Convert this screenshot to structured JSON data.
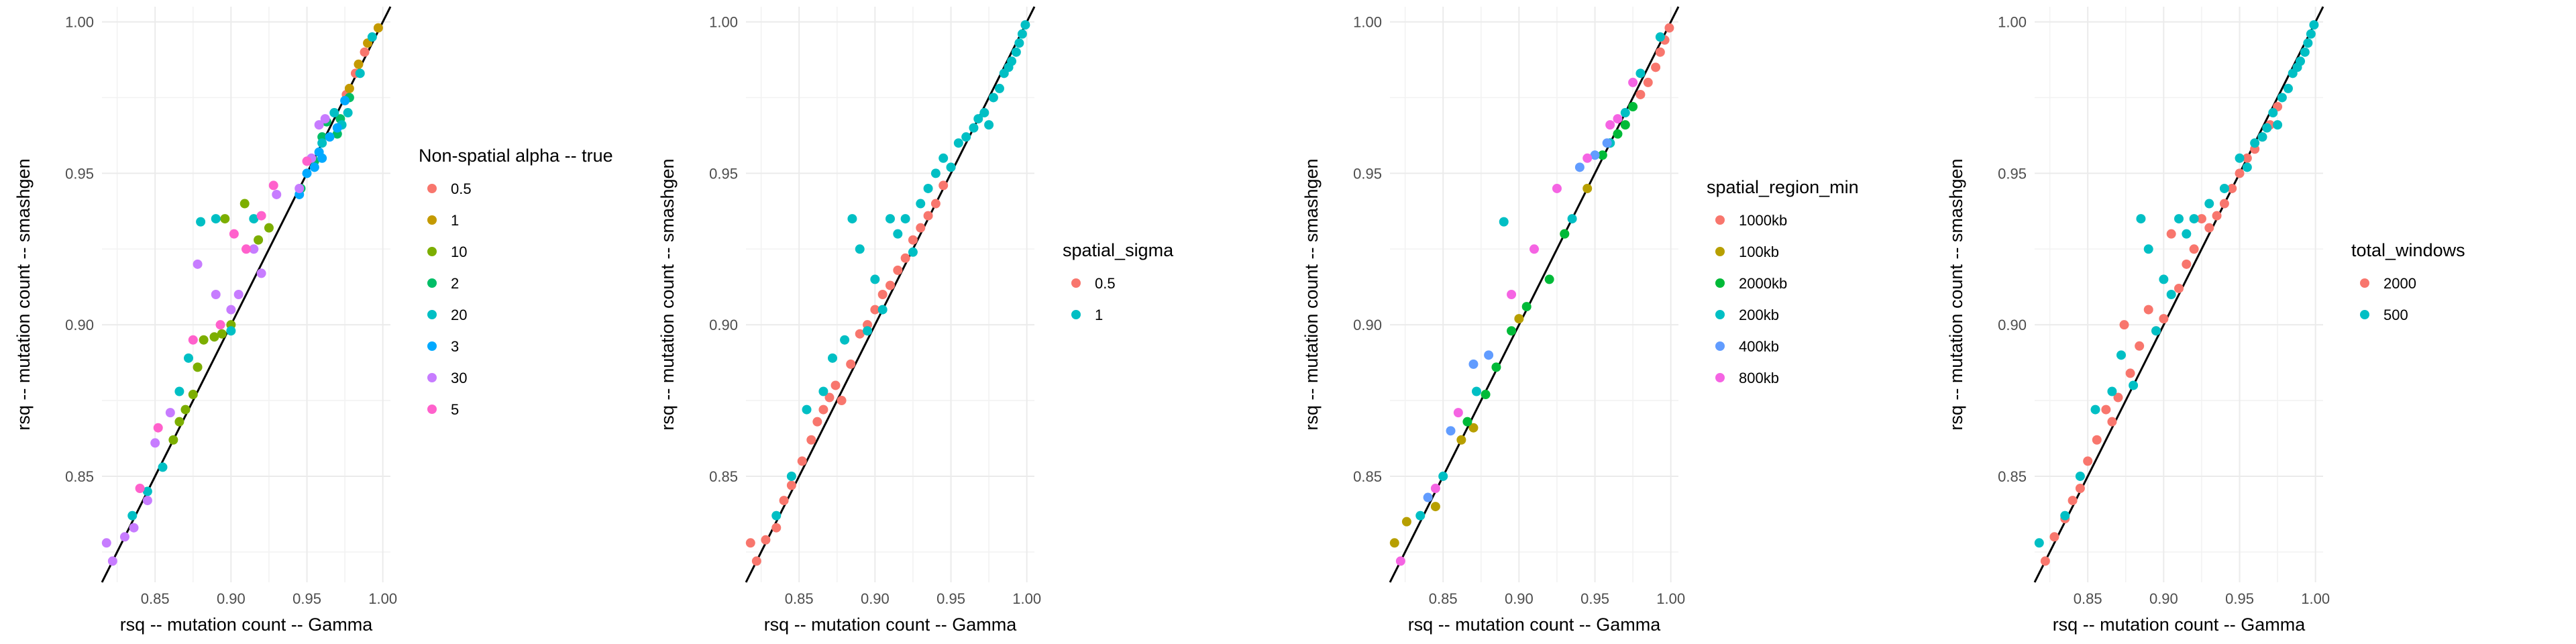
{
  "chart_data": [
    {
      "type": "scatter",
      "xlabel": "rsq -- mutation count -- Gamma",
      "ylabel": "rsq -- mutation count -- smashgen",
      "xlim": [
        0.815,
        1.005
      ],
      "ylim": [
        0.815,
        1.005
      ],
      "x_ticks": [
        "0.85",
        "0.90",
        "0.95",
        "1.00"
      ],
      "y_ticks": [
        "0.85",
        "0.90",
        "0.95",
        "1.00"
      ],
      "grid": true,
      "reference_line": "y = x",
      "legend_title": "Non-spatial alpha -- true",
      "legend_position": "right",
      "series": [
        {
          "name": "0.5",
          "color": "#F8766D",
          "x": [
            0.976,
            0.982,
            0.988
          ],
          "y": [
            0.976,
            0.983,
            0.99
          ]
        },
        {
          "name": "1",
          "color": "#C49A00",
          "x": [
            0.978,
            0.984,
            0.99,
            0.997
          ],
          "y": [
            0.978,
            0.986,
            0.993,
            0.998
          ]
        },
        {
          "name": "10",
          "color": "#7CAE00",
          "x": [
            0.862,
            0.866,
            0.87,
            0.875,
            0.878,
            0.882,
            0.889,
            0.894,
            0.896,
            0.9,
            0.909,
            0.918,
            0.925
          ],
          "y": [
            0.862,
            0.868,
            0.872,
            0.877,
            0.886,
            0.895,
            0.896,
            0.897,
            0.935,
            0.9,
            0.94,
            0.928,
            0.932
          ]
        },
        {
          "name": "2",
          "color": "#00BE67",
          "x": [
            0.946,
            0.955,
            0.96,
            0.963,
            0.97,
            0.972,
            0.978
          ],
          "y": [
            0.945,
            0.954,
            0.962,
            0.967,
            0.963,
            0.968,
            0.975
          ]
        },
        {
          "name": "20",
          "color": "#00BFC4",
          "x": [
            0.835,
            0.845,
            0.855,
            0.866,
            0.872,
            0.88,
            0.89,
            0.9,
            0.915,
            0.96,
            0.968,
            0.973,
            0.977,
            0.985,
            0.993
          ],
          "y": [
            0.837,
            0.845,
            0.853,
            0.878,
            0.889,
            0.934,
            0.935,
            0.898,
            0.935,
            0.96,
            0.97,
            0.966,
            0.97,
            0.983,
            0.995
          ]
        },
        {
          "name": "3",
          "color": "#00A9FF",
          "x": [
            0.945,
            0.95,
            0.955,
            0.958,
            0.96,
            0.965,
            0.97,
            0.975
          ],
          "y": [
            0.943,
            0.95,
            0.952,
            0.957,
            0.955,
            0.962,
            0.965,
            0.974
          ]
        },
        {
          "name": "30",
          "color": "#C77CFF",
          "x": [
            0.818,
            0.822,
            0.83,
            0.836,
            0.845,
            0.85,
            0.86,
            0.878,
            0.89,
            0.9,
            0.905,
            0.915,
            0.92,
            0.93,
            0.945,
            0.953,
            0.958,
            0.962
          ],
          "y": [
            0.828,
            0.822,
            0.83,
            0.833,
            0.842,
            0.861,
            0.871,
            0.92,
            0.91,
            0.905,
            0.91,
            0.925,
            0.917,
            0.943,
            0.945,
            0.955,
            0.966,
            0.968
          ]
        },
        {
          "name": "5",
          "color": "#FF61CC",
          "x": [
            0.84,
            0.852,
            0.875,
            0.893,
            0.902,
            0.91,
            0.92,
            0.928,
            0.95
          ],
          "y": [
            0.846,
            0.866,
            0.895,
            0.9,
            0.93,
            0.925,
            0.936,
            0.946,
            0.954
          ]
        }
      ]
    },
    {
      "type": "scatter",
      "xlabel": "rsq -- mutation count -- Gamma",
      "ylabel": "rsq -- mutation count -- smashgen",
      "xlim": [
        0.815,
        1.005
      ],
      "ylim": [
        0.815,
        1.005
      ],
      "x_ticks": [
        "0.85",
        "0.90",
        "0.95",
        "1.00"
      ],
      "y_ticks": [
        "0.85",
        "0.90",
        "0.95",
        "1.00"
      ],
      "grid": true,
      "reference_line": "y = x",
      "legend_title": "spatial_sigma",
      "legend_position": "right",
      "series": [
        {
          "name": "0.5",
          "color": "#F8766D",
          "x": [
            0.818,
            0.822,
            0.828,
            0.835,
            0.84,
            0.845,
            0.852,
            0.858,
            0.862,
            0.866,
            0.87,
            0.874,
            0.878,
            0.884,
            0.89,
            0.895,
            0.9,
            0.905,
            0.91,
            0.915,
            0.92,
            0.925,
            0.93,
            0.935,
            0.94,
            0.945
          ],
          "y": [
            0.828,
            0.822,
            0.829,
            0.833,
            0.842,
            0.847,
            0.855,
            0.862,
            0.868,
            0.872,
            0.876,
            0.88,
            0.875,
            0.887,
            0.897,
            0.9,
            0.905,
            0.91,
            0.913,
            0.918,
            0.922,
            0.928,
            0.932,
            0.936,
            0.94,
            0.946
          ]
        },
        {
          "name": "1",
          "color": "#00BFC4",
          "x": [
            0.835,
            0.845,
            0.855,
            0.866,
            0.872,
            0.88,
            0.885,
            0.89,
            0.895,
            0.9,
            0.905,
            0.91,
            0.915,
            0.92,
            0.925,
            0.93,
            0.935,
            0.94,
            0.945,
            0.95,
            0.955,
            0.96,
            0.965,
            0.968,
            0.972,
            0.975,
            0.978,
            0.982,
            0.985,
            0.988,
            0.99,
            0.993,
            0.995,
            0.997,
            0.999
          ],
          "y": [
            0.837,
            0.85,
            0.872,
            0.878,
            0.889,
            0.895,
            0.935,
            0.925,
            0.898,
            0.915,
            0.905,
            0.935,
            0.93,
            0.935,
            0.924,
            0.94,
            0.945,
            0.95,
            0.955,
            0.952,
            0.96,
            0.962,
            0.965,
            0.968,
            0.97,
            0.966,
            0.975,
            0.978,
            0.983,
            0.985,
            0.987,
            0.99,
            0.993,
            0.996,
            0.999
          ]
        }
      ]
    },
    {
      "type": "scatter",
      "xlabel": "rsq -- mutation count -- Gamma",
      "ylabel": "rsq -- mutation count -- smashgen",
      "xlim": [
        0.815,
        1.005
      ],
      "ylim": [
        0.815,
        1.005
      ],
      "x_ticks": [
        "0.85",
        "0.90",
        "0.95",
        "1.00"
      ],
      "y_ticks": [
        "0.85",
        "0.90",
        "0.95",
        "1.00"
      ],
      "grid": true,
      "reference_line": "y = x",
      "legend_title": "spatial_region_min",
      "legend_position": "right",
      "series": [
        {
          "name": "1000kb",
          "color": "#F8766D",
          "x": [
            0.98,
            0.985,
            0.99,
            0.993,
            0.996,
            0.999
          ],
          "y": [
            0.976,
            0.98,
            0.985,
            0.99,
            0.994,
            0.998
          ]
        },
        {
          "name": "100kb",
          "color": "#B79F00",
          "x": [
            0.818,
            0.826,
            0.845,
            0.862,
            0.87,
            0.9,
            0.93,
            0.945
          ],
          "y": [
            0.828,
            0.835,
            0.84,
            0.862,
            0.866,
            0.902,
            0.93,
            0.945
          ]
        },
        {
          "name": "2000kb",
          "color": "#00BA38",
          "x": [
            0.866,
            0.878,
            0.885,
            0.895,
            0.905,
            0.92,
            0.93,
            0.955,
            0.96,
            0.965,
            0.97,
            0.975
          ],
          "y": [
            0.868,
            0.877,
            0.886,
            0.898,
            0.906,
            0.915,
            0.93,
            0.956,
            0.96,
            0.963,
            0.966,
            0.972
          ]
        },
        {
          "name": "200kb",
          "color": "#00BFC4",
          "x": [
            0.835,
            0.85,
            0.872,
            0.89,
            0.935,
            0.96,
            0.97,
            0.98,
            0.993
          ],
          "y": [
            0.837,
            0.85,
            0.878,
            0.934,
            0.935,
            0.96,
            0.97,
            0.983,
            0.995
          ]
        },
        {
          "name": "400kb",
          "color": "#619CFF",
          "x": [
            0.84,
            0.855,
            0.87,
            0.88,
            0.94,
            0.95,
            0.958
          ],
          "y": [
            0.843,
            0.865,
            0.887,
            0.89,
            0.952,
            0.956,
            0.96
          ]
        },
        {
          "name": "800kb",
          "color": "#F564E3",
          "x": [
            0.822,
            0.845,
            0.86,
            0.895,
            0.91,
            0.925,
            0.945,
            0.96,
            0.965,
            0.975
          ],
          "y": [
            0.822,
            0.846,
            0.871,
            0.91,
            0.925,
            0.945,
            0.955,
            0.966,
            0.968,
            0.98
          ]
        }
      ]
    },
    {
      "type": "scatter",
      "xlabel": "rsq -- mutation count -- Gamma",
      "ylabel": "rsq -- mutation count -- smashgen",
      "xlim": [
        0.815,
        1.005
      ],
      "ylim": [
        0.815,
        1.005
      ],
      "x_ticks": [
        "0.85",
        "0.90",
        "0.95",
        "1.00"
      ],
      "y_ticks": [
        "0.85",
        "0.90",
        "0.95",
        "1.00"
      ],
      "grid": true,
      "reference_line": "y = x",
      "legend_title": "total_windows",
      "legend_position": "right",
      "series": [
        {
          "name": "2000",
          "color": "#F8766D",
          "x": [
            0.822,
            0.828,
            0.835,
            0.84,
            0.845,
            0.85,
            0.856,
            0.862,
            0.866,
            0.87,
            0.874,
            0.878,
            0.884,
            0.89,
            0.895,
            0.9,
            0.905,
            0.91,
            0.915,
            0.92,
            0.925,
            0.93,
            0.935,
            0.94,
            0.945,
            0.95,
            0.955,
            0.96,
            0.965,
            0.97,
            0.975
          ],
          "y": [
            0.822,
            0.83,
            0.836,
            0.842,
            0.846,
            0.855,
            0.862,
            0.872,
            0.868,
            0.876,
            0.9,
            0.884,
            0.893,
            0.905,
            0.898,
            0.902,
            0.93,
            0.912,
            0.92,
            0.925,
            0.935,
            0.932,
            0.936,
            0.94,
            0.945,
            0.95,
            0.955,
            0.958,
            0.962,
            0.966,
            0.972
          ]
        },
        {
          "name": "500",
          "color": "#00BFC4",
          "x": [
            0.818,
            0.835,
            0.845,
            0.855,
            0.866,
            0.872,
            0.88,
            0.885,
            0.89,
            0.895,
            0.9,
            0.905,
            0.91,
            0.915,
            0.92,
            0.93,
            0.94,
            0.95,
            0.955,
            0.96,
            0.965,
            0.968,
            0.972,
            0.975,
            0.978,
            0.982,
            0.985,
            0.988,
            0.99,
            0.993,
            0.995,
            0.997,
            0.999
          ],
          "y": [
            0.828,
            0.837,
            0.85,
            0.872,
            0.878,
            0.89,
            0.88,
            0.935,
            0.925,
            0.898,
            0.915,
            0.91,
            0.935,
            0.93,
            0.935,
            0.94,
            0.945,
            0.955,
            0.952,
            0.96,
            0.962,
            0.965,
            0.97,
            0.966,
            0.975,
            0.978,
            0.983,
            0.985,
            0.987,
            0.99,
            0.993,
            0.996,
            0.999
          ]
        }
      ]
    }
  ]
}
